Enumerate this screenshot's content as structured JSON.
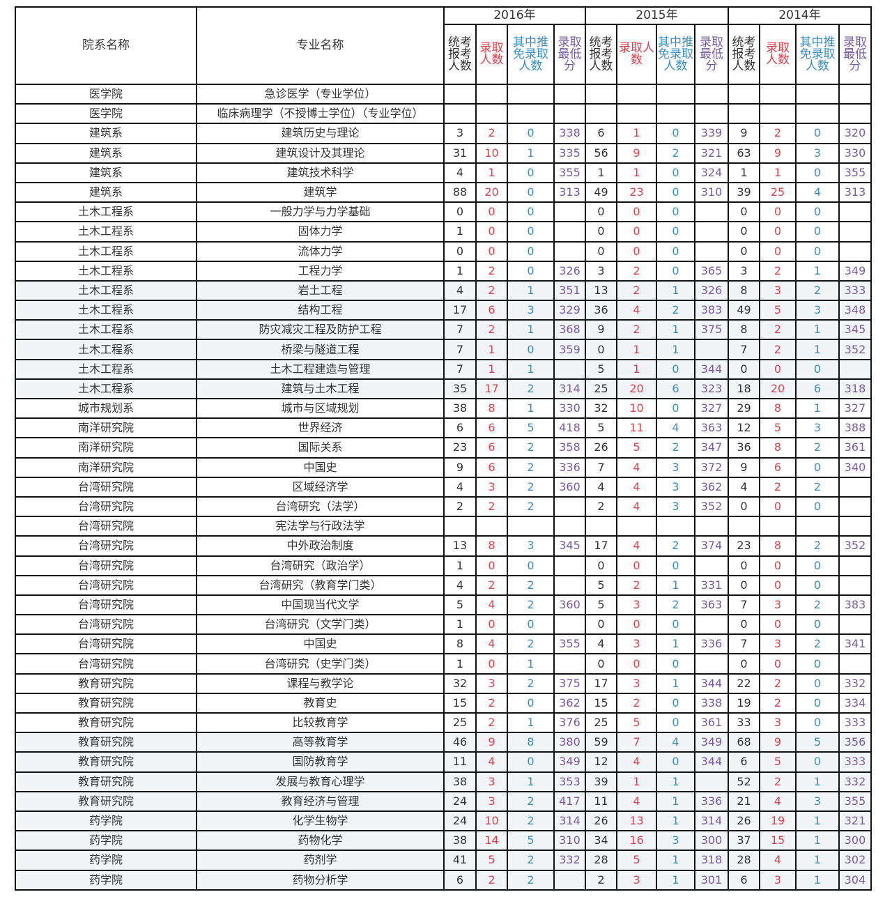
{
  "header": {
    "dept_label": "院系名称",
    "major_label": "专业名称",
    "years": [
      "2016年",
      "2015年",
      "2014年"
    ],
    "sub_columns": [
      {
        "label": "统考报考人数",
        "color": "#333333"
      },
      {
        "label": "录取人数",
        "color": "#e0404a"
      },
      {
        "label": "其中推免录取人数",
        "color": "#3a8fc0"
      },
      {
        "label": "录取最低分",
        "color": "#7a5aa8"
      }
    ]
  },
  "rows": [
    {
      "dept": "医学院",
      "major": "急诊医学（专业学位）",
      "v": [
        "",
        "",
        "",
        "",
        "",
        "",
        "",
        "",
        "",
        "",
        "",
        ""
      ]
    },
    {
      "dept": "医学院",
      "major": "临床病理学（不授博士学位）（专业学位）",
      "v": [
        "",
        "",
        "",
        "",
        "",
        "",
        "",
        "",
        "",
        "",
        "",
        ""
      ]
    },
    {
      "dept": "建筑系",
      "major": "建筑历史与理论",
      "v": [
        "3",
        "2",
        "0",
        "338",
        "6",
        "1",
        "0",
        "339",
        "9",
        "2",
        "0",
        "320"
      ]
    },
    {
      "dept": "建筑系",
      "major": "建筑设计及其理论",
      "v": [
        "31",
        "10",
        "1",
        "335",
        "56",
        "9",
        "2",
        "321",
        "63",
        "9",
        "3",
        "330"
      ]
    },
    {
      "dept": "建筑系",
      "major": "建筑技术科学",
      "v": [
        "4",
        "1",
        "0",
        "355",
        "1",
        "1",
        "0",
        "324",
        "1",
        "1",
        "0",
        "355"
      ]
    },
    {
      "dept": "建筑系",
      "major": "建筑学",
      "v": [
        "88",
        "20",
        "0",
        "313",
        "49",
        "23",
        "0",
        "310",
        "39",
        "25",
        "4",
        "313"
      ]
    },
    {
      "dept": "土木工程系",
      "major": "一般力学与力学基础",
      "v": [
        "0",
        "0",
        "0",
        "",
        "0",
        "0",
        "0",
        "",
        "0",
        "0",
        "0",
        ""
      ]
    },
    {
      "dept": "土木工程系",
      "major": "固体力学",
      "v": [
        "1",
        "0",
        "0",
        "",
        "0",
        "0",
        "0",
        "",
        "0",
        "0",
        "0",
        ""
      ]
    },
    {
      "dept": "土木工程系",
      "major": "流体力学",
      "v": [
        "0",
        "0",
        "0",
        "",
        "0",
        "0",
        "0",
        "",
        "0",
        "0",
        "0",
        ""
      ]
    },
    {
      "dept": "土木工程系",
      "major": "工程力学",
      "v": [
        "1",
        "2",
        "0",
        "326",
        "3",
        "2",
        "0",
        "365",
        "3",
        "2",
        "1",
        "349"
      ]
    },
    {
      "dept": "土木工程系",
      "major": "岩土工程",
      "v": [
        "4",
        "2",
        "1",
        "351",
        "13",
        "2",
        "1",
        "326",
        "8",
        "3",
        "2",
        "333"
      ]
    },
    {
      "dept": "土木工程系",
      "major": "结构工程",
      "v": [
        "17",
        "6",
        "3",
        "329",
        "36",
        "4",
        "2",
        "383",
        "49",
        "5",
        "3",
        "348"
      ]
    },
    {
      "dept": "土木工程系",
      "major": "防灾减灾工程及防护工程",
      "v": [
        "7",
        "2",
        "1",
        "368",
        "9",
        "2",
        "1",
        "375",
        "8",
        "2",
        "1",
        "345"
      ]
    },
    {
      "dept": "土木工程系",
      "major": "桥梁与隧道工程",
      "v": [
        "7",
        "1",
        "0",
        "359",
        "0",
        "1",
        "1",
        "",
        "7",
        "2",
        "1",
        "352"
      ]
    },
    {
      "dept": "土木工程系",
      "major": "土木工程建造与管理",
      "v": [
        "7",
        "1",
        "1",
        "",
        "5",
        "1",
        "0",
        "344",
        "0",
        "0",
        "0",
        ""
      ]
    },
    {
      "dept": "土木工程系",
      "major": "建筑与土木工程",
      "v": [
        "35",
        "17",
        "2",
        "314",
        "25",
        "20",
        "6",
        "323",
        "18",
        "20",
        "6",
        "318"
      ]
    },
    {
      "dept": "城市规划系",
      "major": "城市与区域规划",
      "v": [
        "38",
        "8",
        "1",
        "330",
        "32",
        "10",
        "0",
        "327",
        "29",
        "8",
        "1",
        "327"
      ]
    },
    {
      "dept": "南洋研究院",
      "major": "世界经济",
      "v": [
        "6",
        "6",
        "5",
        "418",
        "5",
        "11",
        "4",
        "363",
        "12",
        "5",
        "3",
        "388"
      ]
    },
    {
      "dept": "南洋研究院",
      "major": "国际关系",
      "v": [
        "23",
        "6",
        "2",
        "358",
        "26",
        "5",
        "2",
        "347",
        "36",
        "8",
        "2",
        "361"
      ]
    },
    {
      "dept": "南洋研究院",
      "major": "中国史",
      "v": [
        "9",
        "6",
        "2",
        "336",
        "7",
        "4",
        "3",
        "372",
        "9",
        "6",
        "0",
        "340"
      ]
    },
    {
      "dept": "台湾研究院",
      "major": "区域经济学",
      "v": [
        "4",
        "3",
        "2",
        "360",
        "4",
        "4",
        "3",
        "362",
        "4",
        "2",
        "2",
        ""
      ]
    },
    {
      "dept": "台湾研究院",
      "major": "台湾研究（法学）",
      "v": [
        "2",
        "2",
        "2",
        "",
        "2",
        "4",
        "3",
        "352",
        "0",
        "0",
        "0",
        ""
      ]
    },
    {
      "dept": "台湾研究院",
      "major": "宪法学与行政法学",
      "v": [
        "",
        "",
        "",
        "",
        "",
        "",
        "",
        "",
        "",
        "",
        "",
        ""
      ]
    },
    {
      "dept": "台湾研究院",
      "major": "中外政治制度",
      "v": [
        "13",
        "8",
        "3",
        "345",
        "17",
        "4",
        "2",
        "374",
        "23",
        "8",
        "2",
        "352"
      ]
    },
    {
      "dept": "台湾研究院",
      "major": "台湾研究（政治学）",
      "v": [
        "1",
        "0",
        "0",
        "",
        "0",
        "0",
        "0",
        "",
        "0",
        "0",
        "0",
        ""
      ]
    },
    {
      "dept": "台湾研究院",
      "major": "台湾研究（教育学门类）",
      "v": [
        "4",
        "2",
        "2",
        "",
        "5",
        "2",
        "1",
        "331",
        "0",
        "0",
        "0",
        ""
      ]
    },
    {
      "dept": "台湾研究院",
      "major": "中国现当代文学",
      "v": [
        "5",
        "4",
        "2",
        "360",
        "5",
        "3",
        "2",
        "363",
        "7",
        "3",
        "2",
        "383"
      ]
    },
    {
      "dept": "台湾研究院",
      "major": "台湾研究（文学门类）",
      "v": [
        "1",
        "0",
        "0",
        "",
        "0",
        "0",
        "0",
        "",
        "0",
        "0",
        "0",
        ""
      ]
    },
    {
      "dept": "台湾研究院",
      "major": "中国史",
      "v": [
        "8",
        "4",
        "2",
        "355",
        "4",
        "3",
        "1",
        "336",
        "7",
        "3",
        "2",
        "341"
      ]
    },
    {
      "dept": "台湾研究院",
      "major": "台湾研究（史学门类）",
      "v": [
        "1",
        "0",
        "1",
        "",
        "0",
        "0",
        "0",
        "",
        "0",
        "0",
        "0",
        ""
      ]
    },
    {
      "dept": "教育研究院",
      "major": "课程与教学论",
      "v": [
        "32",
        "3",
        "2",
        "375",
        "17",
        "3",
        "1",
        "344",
        "22",
        "2",
        "0",
        "332"
      ]
    },
    {
      "dept": "教育研究院",
      "major": "教育史",
      "v": [
        "15",
        "2",
        "0",
        "362",
        "15",
        "2",
        "0",
        "338",
        "19",
        "2",
        "0",
        "334"
      ]
    },
    {
      "dept": "教育研究院",
      "major": "比较教育学",
      "v": [
        "25",
        "2",
        "1",
        "376",
        "25",
        "5",
        "0",
        "361",
        "33",
        "3",
        "0",
        "333"
      ]
    },
    {
      "dept": "教育研究院",
      "major": "高等教育学",
      "v": [
        "46",
        "9",
        "8",
        "380",
        "59",
        "7",
        "4",
        "349",
        "68",
        "9",
        "5",
        "356"
      ]
    },
    {
      "dept": "教育研究院",
      "major": "国防教育学",
      "v": [
        "11",
        "4",
        "0",
        "349",
        "12",
        "4",
        "0",
        "344",
        "6",
        "5",
        "0",
        "333"
      ]
    },
    {
      "dept": "教育研究院",
      "major": "发展与教育心理学",
      "v": [
        "38",
        "3",
        "1",
        "353",
        "39",
        "1",
        "1",
        "",
        "52",
        "2",
        "1",
        "332"
      ]
    },
    {
      "dept": "教育研究院",
      "major": "教育经济与管理",
      "v": [
        "24",
        "3",
        "2",
        "417",
        "11",
        "4",
        "1",
        "336",
        "21",
        "4",
        "3",
        "355"
      ]
    },
    {
      "dept": "药学院",
      "major": "化学生物学",
      "v": [
        "24",
        "10",
        "2",
        "314",
        "26",
        "13",
        "1",
        "314",
        "26",
        "19",
        "1",
        "321"
      ]
    },
    {
      "dept": "药学院",
      "major": "药物化学",
      "v": [
        "38",
        "14",
        "5",
        "310",
        "34",
        "16",
        "3",
        "300",
        "37",
        "15",
        "1",
        "300"
      ]
    },
    {
      "dept": "药学院",
      "major": "药剂学",
      "v": [
        "41",
        "5",
        "2",
        "332",
        "28",
        "5",
        "1",
        "318",
        "28",
        "4",
        "1",
        "302"
      ]
    },
    {
      "dept": "药学院",
      "major": "药物分析学",
      "v": [
        "6",
        "2",
        "2",
        "",
        "2",
        "3",
        "1",
        "301",
        "6",
        "3",
        "1",
        "304"
      ]
    }
  ]
}
